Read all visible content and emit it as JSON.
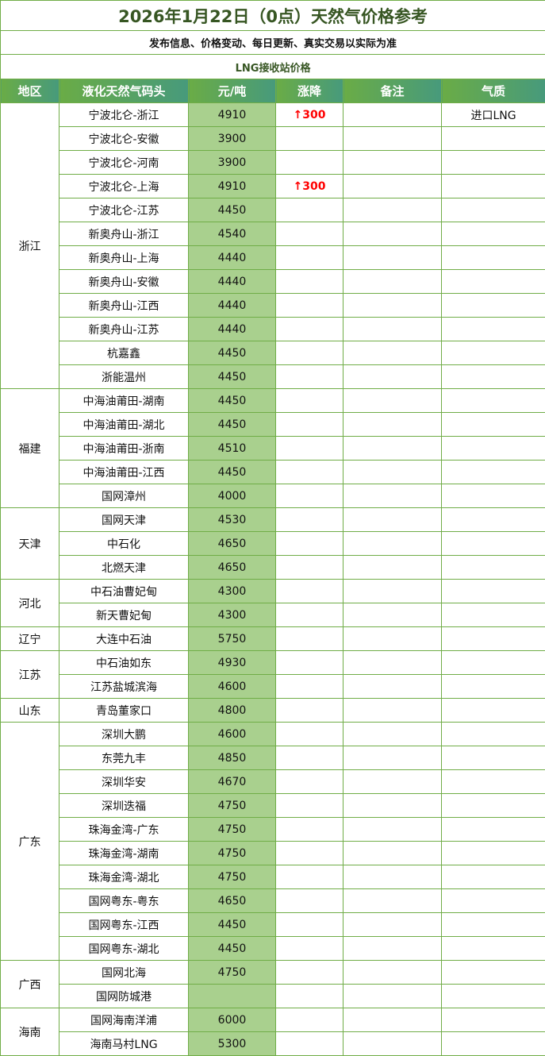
{
  "title": "2026年1月22日（0点）天然气价格参考",
  "subtitle": "发布信息、价格变动、每日更新、真实交易以实际为准",
  "section": "LNG接收站价格",
  "headers": [
    "地区",
    "液化天然气码头",
    "元/吨",
    "涨降",
    "备注",
    "气质"
  ],
  "colors": {
    "border": "#70ad47",
    "price_bg": "#a9d08e",
    "up": "#ff0000",
    "title": "#375623"
  },
  "regions": [
    {
      "name": "浙江",
      "rows": [
        {
          "terminal": "宁波北仑-浙江",
          "price": "4910",
          "change": "↑300",
          "note": "",
          "quality": "进口LNG"
        },
        {
          "terminal": "宁波北仑-安徽",
          "price": "3900",
          "change": "",
          "note": "",
          "quality": ""
        },
        {
          "terminal": "宁波北仑-河南",
          "price": "3900",
          "change": "",
          "note": "",
          "quality": ""
        },
        {
          "terminal": "宁波北仑-上海",
          "price": "4910",
          "change": "↑300",
          "note": "",
          "quality": ""
        },
        {
          "terminal": "宁波北仑-江苏",
          "price": "4450",
          "change": "",
          "note": "",
          "quality": ""
        },
        {
          "terminal": "新奥舟山-浙江",
          "price": "4540",
          "change": "",
          "note": "",
          "quality": ""
        },
        {
          "terminal": "新奥舟山-上海",
          "price": "4440",
          "change": "",
          "note": "",
          "quality": ""
        },
        {
          "terminal": "新奥舟山-安徽",
          "price": "4440",
          "change": "",
          "note": "",
          "quality": ""
        },
        {
          "terminal": "新奥舟山-江西",
          "price": "4440",
          "change": "",
          "note": "",
          "quality": ""
        },
        {
          "terminal": "新奥舟山-江苏",
          "price": "4440",
          "change": "",
          "note": "",
          "quality": ""
        },
        {
          "terminal": "杭嘉鑫",
          "price": "4450",
          "change": "",
          "note": "",
          "quality": ""
        },
        {
          "terminal": "浙能温州",
          "price": "4450",
          "change": "",
          "note": "",
          "quality": ""
        }
      ]
    },
    {
      "name": "福建",
      "rows": [
        {
          "terminal": "中海油莆田-湖南",
          "price": "4450",
          "change": "",
          "note": "",
          "quality": ""
        },
        {
          "terminal": "中海油莆田-湖北",
          "price": "4450",
          "change": "",
          "note": "",
          "quality": ""
        },
        {
          "terminal": "中海油莆田-浙南",
          "price": "4510",
          "change": "",
          "note": "",
          "quality": ""
        },
        {
          "terminal": "中海油莆田-江西",
          "price": "4450",
          "change": "",
          "note": "",
          "quality": ""
        },
        {
          "terminal": "国网漳州",
          "price": "4000",
          "change": "",
          "note": "",
          "quality": ""
        }
      ]
    },
    {
      "name": "天津",
      "rows": [
        {
          "terminal": "国网天津",
          "price": "4530",
          "change": "",
          "note": "",
          "quality": ""
        },
        {
          "terminal": "中石化",
          "price": "4650",
          "change": "",
          "note": "",
          "quality": ""
        },
        {
          "terminal": "北燃天津",
          "price": "4650",
          "change": "",
          "note": "",
          "quality": ""
        }
      ]
    },
    {
      "name": "河北",
      "rows": [
        {
          "terminal": "中石油曹妃甸",
          "price": "4300",
          "change": "",
          "note": "",
          "quality": ""
        },
        {
          "terminal": "新天曹妃甸",
          "price": "4300",
          "change": "",
          "note": "",
          "quality": ""
        }
      ]
    },
    {
      "name": "辽宁",
      "rows": [
        {
          "terminal": "大连中石油",
          "price": "5750",
          "change": "",
          "note": "",
          "quality": ""
        }
      ]
    },
    {
      "name": "江苏",
      "rows": [
        {
          "terminal": "中石油如东",
          "price": "4930",
          "change": "",
          "note": "",
          "quality": ""
        },
        {
          "terminal": "江苏盐城滨海",
          "price": "4600",
          "change": "",
          "note": "",
          "quality": ""
        }
      ]
    },
    {
      "name": "山东",
      "rows": [
        {
          "terminal": "青岛董家口",
          "price": "4800",
          "change": "",
          "note": "",
          "quality": ""
        }
      ]
    },
    {
      "name": "广东",
      "rows": [
        {
          "terminal": "深圳大鹏",
          "price": "4600",
          "change": "",
          "note": "",
          "quality": ""
        },
        {
          "terminal": "东莞九丰",
          "price": "4850",
          "change": "",
          "note": "",
          "quality": ""
        },
        {
          "terminal": "深圳华安",
          "price": "4670",
          "change": "",
          "note": "",
          "quality": ""
        },
        {
          "terminal": "深圳迭福",
          "price": "4750",
          "change": "",
          "note": "",
          "quality": ""
        },
        {
          "terminal": "珠海金湾-广东",
          "price": "4750",
          "change": "",
          "note": "",
          "quality": ""
        },
        {
          "terminal": "珠海金湾-湖南",
          "price": "4750",
          "change": "",
          "note": "",
          "quality": ""
        },
        {
          "terminal": "珠海金湾-湖北",
          "price": "4750",
          "change": "",
          "note": "",
          "quality": ""
        },
        {
          "terminal": "国网粤东-粤东",
          "price": "4650",
          "change": "",
          "note": "",
          "quality": ""
        },
        {
          "terminal": "国网粤东-江西",
          "price": "4450",
          "change": "",
          "note": "",
          "quality": ""
        },
        {
          "terminal": "国网粤东-湖北",
          "price": "4450",
          "change": "",
          "note": "",
          "quality": ""
        }
      ]
    },
    {
      "name": "广西",
      "rows": [
        {
          "terminal": "国网北海",
          "price": "4750",
          "change": "",
          "note": "",
          "quality": ""
        },
        {
          "terminal": "国网防城港",
          "price": "",
          "change": "",
          "note": "",
          "quality": ""
        }
      ]
    },
    {
      "name": "海南",
      "rows": [
        {
          "terminal": "国网海南洋浦",
          "price": "6000",
          "change": "",
          "note": "",
          "quality": ""
        },
        {
          "terminal": "海南马村LNG",
          "price": "5300",
          "change": "",
          "note": "",
          "quality": ""
        }
      ]
    }
  ]
}
